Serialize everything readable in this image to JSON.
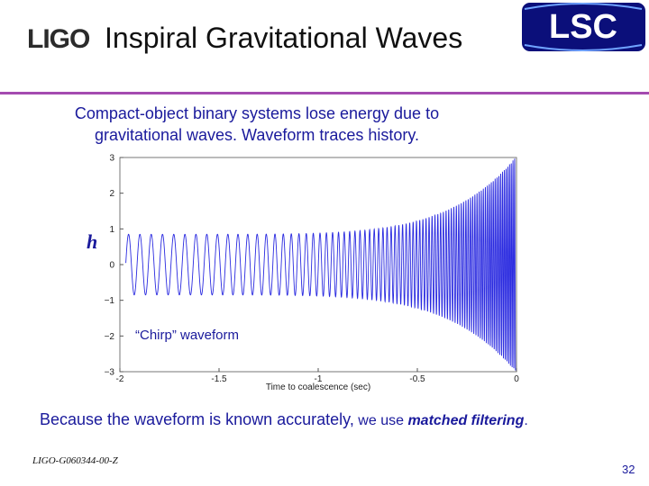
{
  "slide": {
    "title": "Inspiral Gravitational Waves",
    "intro_line1": "Compact-object binary systems lose energy due to",
    "intro_line2": "gravitational waves. Waveform traces history.",
    "h_label": "h",
    "bottom_part1": "Because the waveform is known accurately,",
    "bottom_part2": " we use ",
    "bottom_emph": "matched filtering",
    "bottom_end": ".",
    "footer_id": "LIGO-G060344-00-Z",
    "page_number": "32"
  },
  "logos": {
    "ligo": "LIGO",
    "lsc": "LSC"
  },
  "colors": {
    "text_blue": "#1a1a9c",
    "rule_purple": "#a44bb0",
    "waveform": "#2a2ae0",
    "lsc_bg": "#0b0f7a"
  },
  "chart_data": {
    "type": "line",
    "title": "",
    "annotation": "“Chirp” waveform",
    "xlabel": "Time to coalescence (sec)",
    "ylabel": "",
    "xlim": [
      -2,
      0
    ],
    "ylim": [
      -3,
      3
    ],
    "x_ticks": [
      "-2",
      "-1.5",
      "-1",
      "-0.5",
      "0"
    ],
    "y_ticks": [
      "3",
      "2",
      "1",
      "0",
      "−1",
      "−2",
      "−3"
    ],
    "x_tick_values": [
      -2,
      -1.5,
      -1,
      -0.5,
      0
    ],
    "y_tick_values": [
      3,
      2,
      1,
      0,
      -1,
      -2,
      -3
    ],
    "grid": false,
    "series": [
      {
        "description_model": "chirp",
        "amplitude_start": 0.85,
        "amplitude_end": 3.0,
        "frequency_start_hz": 17.5,
        "frequency_end_hz": 120,
        "x_start": -1.97,
        "x_end": -0.005
      }
    ]
  }
}
